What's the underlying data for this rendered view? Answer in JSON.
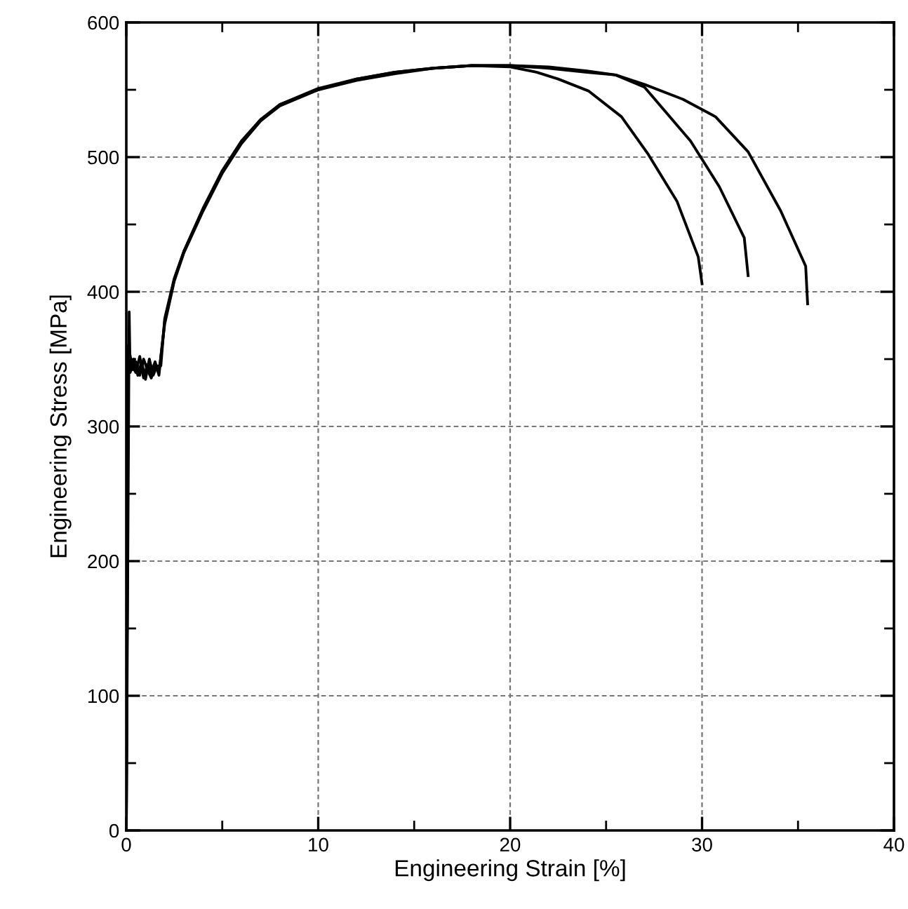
{
  "chart_data": {
    "type": "line",
    "xlabel": "Engineering Strain [%]",
    "ylabel": "Engineering Stress [MPa]",
    "xlim": [
      0,
      40
    ],
    "ylim": [
      0,
      600
    ],
    "xticks": [
      0,
      {
        "value": 5,
        "label": null
      },
      10,
      {
        "value": 15,
        "label": null
      },
      20,
      {
        "value": 25,
        "label": null
      },
      30,
      {
        "value": 35,
        "label": null
      },
      40
    ],
    "yticks": [
      0,
      {
        "value": 50,
        "label": null
      },
      100,
      {
        "value": 150,
        "label": null
      },
      200,
      {
        "value": 250,
        "label": null
      },
      300,
      {
        "value": 350,
        "label": null
      },
      400,
      {
        "value": 450,
        "label": null
      },
      500,
      {
        "value": 550,
        "label": null
      },
      600
    ],
    "grid": true,
    "marker": "none",
    "line_style": "solid",
    "series": [
      {
        "color": "#000000",
        "x": [
          0,
          0.15,
          0.2,
          0.4,
          0.6,
          0.8,
          1.0,
          1.2,
          1.4,
          1.6,
          1.8,
          2,
          2.5,
          3,
          4,
          5,
          6,
          7,
          8,
          10,
          12,
          14,
          16,
          18,
          20,
          21.4,
          22.5,
          24.1,
          25.8,
          27.2,
          28.7,
          29.8,
          30.0
        ],
        "values": [
          0,
          385,
          340,
          350,
          338,
          348,
          335,
          350,
          338,
          345,
          345,
          380,
          410,
          430,
          462,
          490,
          512,
          528,
          539,
          551,
          558,
          563,
          566,
          568,
          567,
          563,
          558,
          549,
          530,
          502,
          467,
          426,
          406
        ]
      },
      {
        "color": "#000000",
        "x": [
          0,
          0.1,
          0.3,
          0.5,
          0.7,
          0.9,
          1.1,
          1.3,
          1.5,
          1.7,
          2,
          2.5,
          3,
          4,
          5,
          6,
          7,
          8,
          10,
          12,
          14,
          16,
          18,
          20,
          22,
          24,
          25.5,
          27.0,
          29.4,
          30.9,
          32.2,
          32.4
        ],
        "values": [
          0,
          360,
          345,
          340,
          352,
          336,
          346,
          340,
          348,
          338,
          378,
          409,
          430,
          461,
          489,
          511,
          527,
          539,
          550,
          558,
          563,
          566,
          568,
          568,
          566,
          563,
          561,
          552,
          512,
          478,
          440,
          412
        ]
      },
      {
        "color": "#000000",
        "x": [
          0,
          0.1,
          0.3,
          0.5,
          0.7,
          0.9,
          1.1,
          1.3,
          1.5,
          1.7,
          2,
          2.5,
          3,
          4,
          5,
          6,
          7,
          8,
          10,
          12,
          14,
          16,
          18,
          20,
          22,
          24,
          25.5,
          27.0,
          29,
          30.7,
          32.4,
          34.1,
          35.4,
          35.5
        ],
        "values": [
          0,
          350,
          342,
          348,
          338,
          350,
          342,
          336,
          346,
          340,
          376,
          408,
          429,
          460,
          488,
          510,
          527,
          538,
          550,
          557,
          562,
          566,
          568,
          568,
          567,
          564,
          561,
          554,
          543,
          530,
          504,
          460,
          419,
          391
        ]
      }
    ]
  }
}
